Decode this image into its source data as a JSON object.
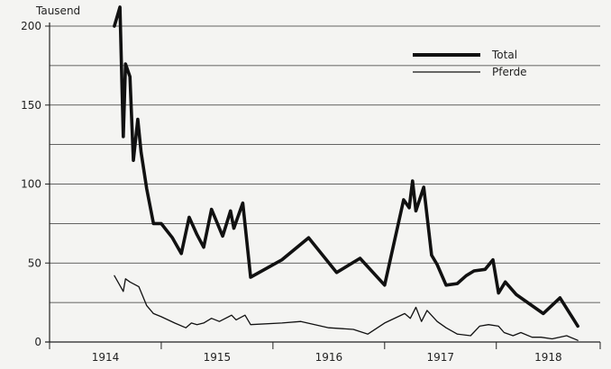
{
  "chart_data": {
    "type": "line",
    "unit_label": "Tausend",
    "xlim": [
      1914.0,
      1918.93
    ],
    "ylim": [
      0,
      200
    ],
    "y_ticks": [
      0,
      50,
      100,
      150,
      200
    ],
    "x_ticks": [
      {
        "label": "1914",
        "value": 1914.0
      },
      {
        "label": "1915",
        "value": 1915.0
      },
      {
        "label": "1916",
        "value": 1916.0
      },
      {
        "label": "1917",
        "value": 1917.0
      },
      {
        "label": "1918",
        "value": 1918.0
      }
    ],
    "grid": {
      "horizontal": true,
      "vertical": false
    },
    "legend_position": "top-right",
    "series": [
      {
        "name": "Total",
        "color": "#111111",
        "style": "thick",
        "x": [
          1914.58,
          1914.63,
          1914.66,
          1914.68,
          1914.72,
          1914.75,
          1914.79,
          1914.82,
          1914.87,
          1914.93,
          1915.0,
          1915.1,
          1915.18,
          1915.25,
          1915.32,
          1915.38,
          1915.45,
          1915.55,
          1915.62,
          1915.65,
          1915.73,
          1915.8,
          1916.08,
          1916.32,
          1916.57,
          1916.78,
          1917.0,
          1917.17,
          1917.22,
          1917.25,
          1917.28,
          1917.35,
          1917.42,
          1917.47,
          1917.55,
          1917.65,
          1917.73,
          1917.8,
          1917.9,
          1917.97,
          1918.02,
          1918.08,
          1918.18,
          1918.3,
          1918.42,
          1918.57,
          1918.73
        ],
        "values": [
          200,
          212,
          130,
          176,
          168,
          115,
          141,
          120,
          97,
          75,
          75,
          66,
          56,
          79,
          68,
          60,
          84,
          67,
          83,
          72,
          88,
          41,
          52,
          66,
          44,
          53,
          36,
          90,
          85,
          102,
          83,
          98,
          55,
          49,
          36,
          37,
          42,
          45,
          46,
          52,
          31,
          38,
          30,
          24,
          18,
          28,
          10
        ],
        "note": "line rises above the 200 gridline at the start (peak clipped at the top edge)"
      },
      {
        "name": "Pferde",
        "color": "#111111",
        "style": "thin",
        "x": [
          1914.58,
          1914.66,
          1914.68,
          1914.72,
          1914.8,
          1914.87,
          1914.93,
          1915.0,
          1915.12,
          1915.22,
          1915.27,
          1915.32,
          1915.38,
          1915.45,
          1915.52,
          1915.63,
          1915.67,
          1915.75,
          1915.8,
          1916.08,
          1916.25,
          1916.5,
          1916.72,
          1916.85,
          1917.0,
          1917.18,
          1917.23,
          1917.28,
          1917.33,
          1917.38,
          1917.47,
          1917.55,
          1917.65,
          1917.77,
          1917.85,
          1917.93,
          1918.02,
          1918.07,
          1918.15,
          1918.22,
          1918.32,
          1918.4,
          1918.5,
          1918.63,
          1918.73
        ],
        "values": [
          42,
          32,
          40,
          38,
          35,
          23,
          18,
          16,
          12,
          9,
          12,
          11,
          12,
          15,
          13,
          17,
          14,
          17,
          11,
          12,
          13,
          9,
          8,
          5,
          12,
          18,
          15,
          22,
          13,
          20,
          13,
          9,
          5,
          4,
          10,
          11,
          10,
          6,
          4,
          6,
          3,
          3,
          2,
          4,
          1
        ]
      }
    ]
  }
}
